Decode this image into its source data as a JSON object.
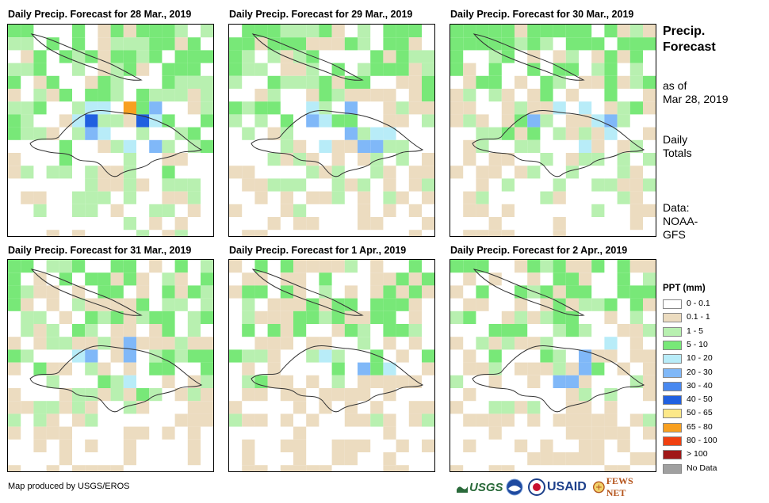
{
  "panels": [
    {
      "title": "Daily Precip. Forecast for 28 Mar., 2019"
    },
    {
      "title": "Daily Precip. Forecast for 29 Mar., 2019"
    },
    {
      "title": "Daily Precip. Forecast for 30 Mar., 2019"
    },
    {
      "title": "Daily Precip. Forecast for 31 Mar., 2019"
    },
    {
      "title": "Daily Precip. Forecast for 1 Apr., 2019"
    },
    {
      "title": "Daily Precip. Forecast for 2 Apr., 2019"
    }
  ],
  "side": {
    "title_line1": "Precip.",
    "title_line2": "Forecast",
    "asof_line1": "as of",
    "asof_line2": "Mar 28, 2019",
    "totals_line1": "Daily",
    "totals_line2": "Totals",
    "data_line1": "Data:",
    "data_line2": "NOAA-",
    "data_line3": "GFS"
  },
  "legend": {
    "title": "PPT (mm)",
    "items": [
      {
        "label": "0 - 0.1",
        "color": "#ffffff"
      },
      {
        "label": "0.1 - 1",
        "color": "#ecdcc0"
      },
      {
        "label": "1 - 5",
        "color": "#b8f0b0"
      },
      {
        "label": "5 - 10",
        "color": "#78e878"
      },
      {
        "label": "10 - 20",
        "color": "#b8ecf8"
      },
      {
        "label": "20 - 30",
        "color": "#80b8f8"
      },
      {
        "label": "30 - 40",
        "color": "#4888f0"
      },
      {
        "label": "40 - 50",
        "color": "#2060e0"
      },
      {
        "label": "50 - 65",
        "color": "#fce888"
      },
      {
        "label": "65 - 80",
        "color": "#f8a020"
      },
      {
        "label": "80 - 100",
        "color": "#f04010"
      },
      {
        "label": "> 100",
        "color": "#a01818"
      },
      {
        "label": "No Data",
        "color": "#a0a0a0"
      }
    ]
  },
  "credit": "Map produced by USGS/EROS",
  "logos": {
    "usgs": "USGS",
    "usaid": "USAID",
    "fewsnet": "FEWS NET"
  }
}
